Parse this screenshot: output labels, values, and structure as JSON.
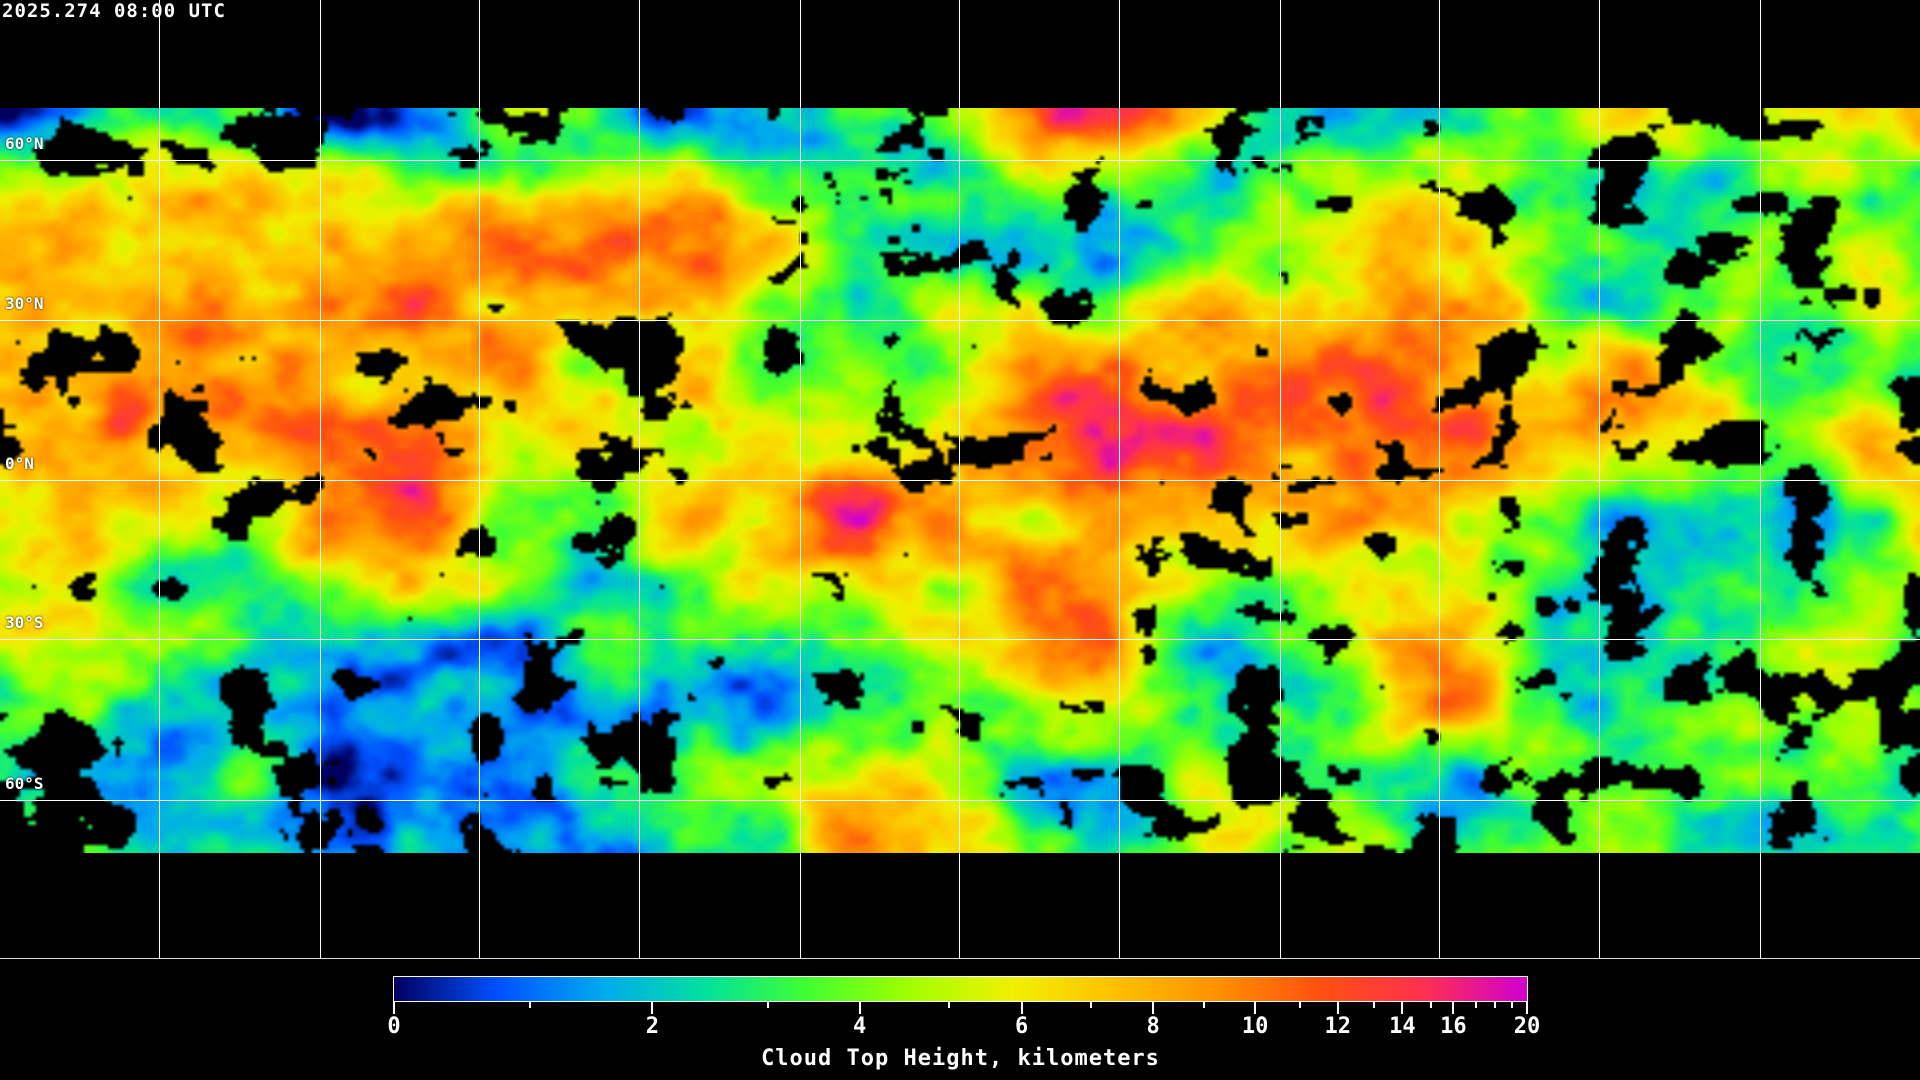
{
  "timestamp": "2025.274 08:00 UTC",
  "latitude_labels": [
    "60°N",
    "30°N",
    "0°N",
    "30°S",
    "60°S"
  ],
  "colorbar": {
    "title": "Cloud Top Height, kilometers",
    "unit": "km",
    "range": [
      0,
      20
    ],
    "tick_labels": [
      "0",
      "2",
      "4",
      "6",
      "8",
      "10",
      "12",
      "14",
      "16",
      "20"
    ],
    "colors": [
      "#000060",
      "#0050ff",
      "#00a8f0",
      "#00e0a0",
      "#40ff30",
      "#a0ff00",
      "#f0f000",
      "#ffc000",
      "#ff9000",
      "#ff5010",
      "#ff3050",
      "#d000d0"
    ]
  },
  "grid": {
    "longitude_spacing_deg": 30,
    "latitude_spacing_deg": 30
  }
}
